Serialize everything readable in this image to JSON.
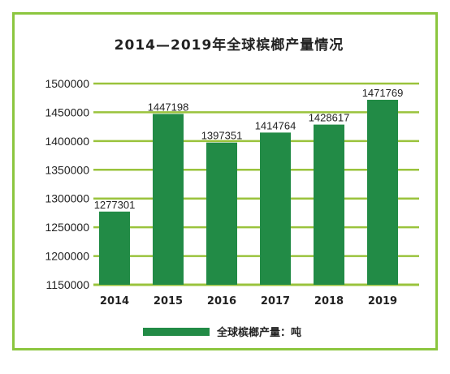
{
  "chart_data": {
    "type": "bar",
    "title": "2014—2019年全球槟榔产量情况",
    "categories": [
      "2014",
      "2015",
      "2016",
      "2017",
      "2018",
      "2019"
    ],
    "series": [
      {
        "name": "全球槟榔产量：吨",
        "values": [
          1277301,
          1447198,
          1397351,
          1414764,
          1428617,
          1471769
        ],
        "labels": [
          "1277301",
          "1447198",
          "1397351",
          "1414764",
          "1428617",
          "1471769"
        ]
      }
    ],
    "ylim": [
      1150000,
      1500000
    ],
    "yticks": [
      1150000,
      1200000,
      1250000,
      1300000,
      1350000,
      1400000,
      1450000,
      1500000
    ],
    "ytick_labels": [
      "1150000",
      "1200000",
      "1250000",
      "1300000",
      "1350000",
      "1400000",
      "1450000",
      "1500000"
    ],
    "grid": true,
    "legend": "bottom",
    "colors": {
      "bar": "#228b46",
      "grid": "#9ac33c",
      "border": "#8cc63f"
    }
  }
}
